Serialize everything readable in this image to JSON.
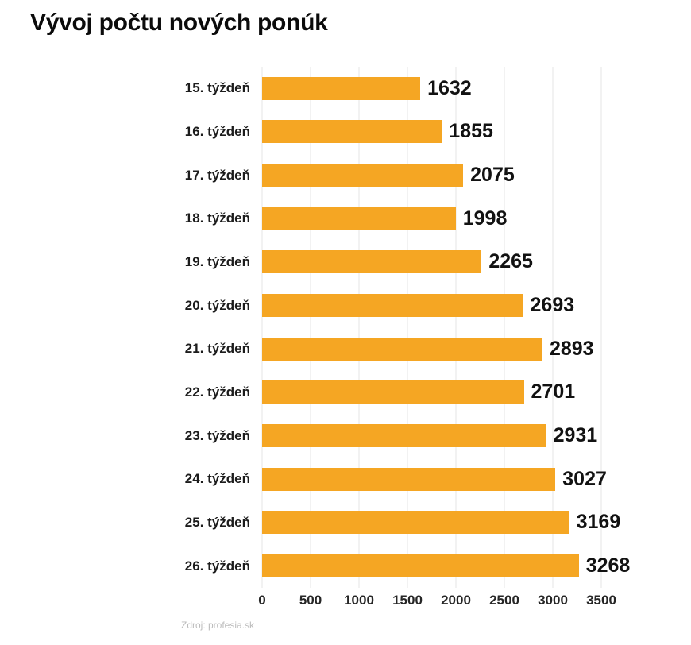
{
  "title": "Vývoj počtu nových ponúk",
  "source": "Zdroj: profesia.sk",
  "colors": {
    "bar": "#f5a623",
    "gridline": "#e4e4e4",
    "title_text": "#0b0b0b",
    "value_text": "#121212",
    "source_text": "#bcbcbc",
    "background": "#ffffff"
  },
  "chart_data": {
    "type": "bar",
    "orientation": "horizontal",
    "title": "Vývoj počtu nových ponúk",
    "categories": [
      "15. týždeň",
      "16. týždeň",
      "17. týždeň",
      "18. týždeň",
      "19. týždeň",
      "20. týždeň",
      "21. týždeň",
      "22. týždeň",
      "23. týždeň",
      "24. týždeň",
      "25. týždeň",
      "26. týždeň"
    ],
    "values": [
      1632,
      1855,
      2075,
      1998,
      2265,
      2693,
      2893,
      2701,
      2931,
      3027,
      3169,
      3268
    ],
    "xlabel": "",
    "ylabel": "",
    "xlim": [
      0,
      3500
    ],
    "xticks": [
      0,
      500,
      1000,
      1500,
      2000,
      2500,
      3000,
      3500
    ],
    "grid": true,
    "legend": false,
    "value_labels": true,
    "source": "Zdroj: profesia.sk"
  }
}
